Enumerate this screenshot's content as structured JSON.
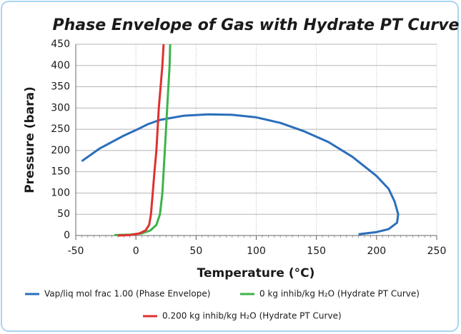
{
  "chart_data": {
    "type": "line",
    "title": "Phase Envelope of Gas with Hydrate PT Curve",
    "xlabel": "Temperature (°C)",
    "ylabel": "Pressure (bara)",
    "xlim": [
      -50,
      250
    ],
    "xticks": [
      -50,
      0,
      50,
      100,
      150,
      200,
      250
    ],
    "ylim": [
      0,
      450
    ],
    "yticks": [
      0,
      50,
      100,
      150,
      200,
      250,
      300,
      350,
      400,
      450
    ],
    "grid": true,
    "series": [
      {
        "name": "Vap/liq mol frac 1.00 (Phase Envelope)",
        "color": "#2a6ebb",
        "x": [
          -45,
          -30,
          -10,
          0,
          10,
          20,
          40,
          60,
          80,
          100,
          120,
          140,
          160,
          180,
          200,
          210,
          215,
          218,
          217,
          210,
          200,
          185
        ],
        "values": [
          175,
          205,
          235,
          248,
          262,
          272,
          282,
          285,
          284,
          278,
          265,
          245,
          220,
          185,
          140,
          110,
          80,
          50,
          30,
          15,
          8,
          3
        ]
      },
      {
        "name": "0 kg inhib/kg H₂O (Hydrate PT Curve)",
        "color": "#3cb44b",
        "x": [
          -18,
          -5,
          5,
          12,
          17,
          20,
          22,
          23,
          24,
          25,
          26,
          27,
          28,
          28.5
        ],
        "values": [
          1,
          2,
          5,
          12,
          25,
          50,
          100,
          150,
          200,
          250,
          300,
          350,
          400,
          450
        ]
      },
      {
        "name": "0.200 kg inhib/kg H₂O (Hydrate PT Curve)",
        "color": "#e03030",
        "x": [
          -15,
          -5,
          3,
          8,
          11,
          12.5,
          14,
          15.4,
          17,
          18,
          19,
          20.5,
          22,
          23
        ],
        "values": [
          0,
          1,
          5,
          12,
          25,
          50,
          100,
          150,
          200,
          250,
          300,
          350,
          400,
          450
        ]
      }
    ]
  }
}
